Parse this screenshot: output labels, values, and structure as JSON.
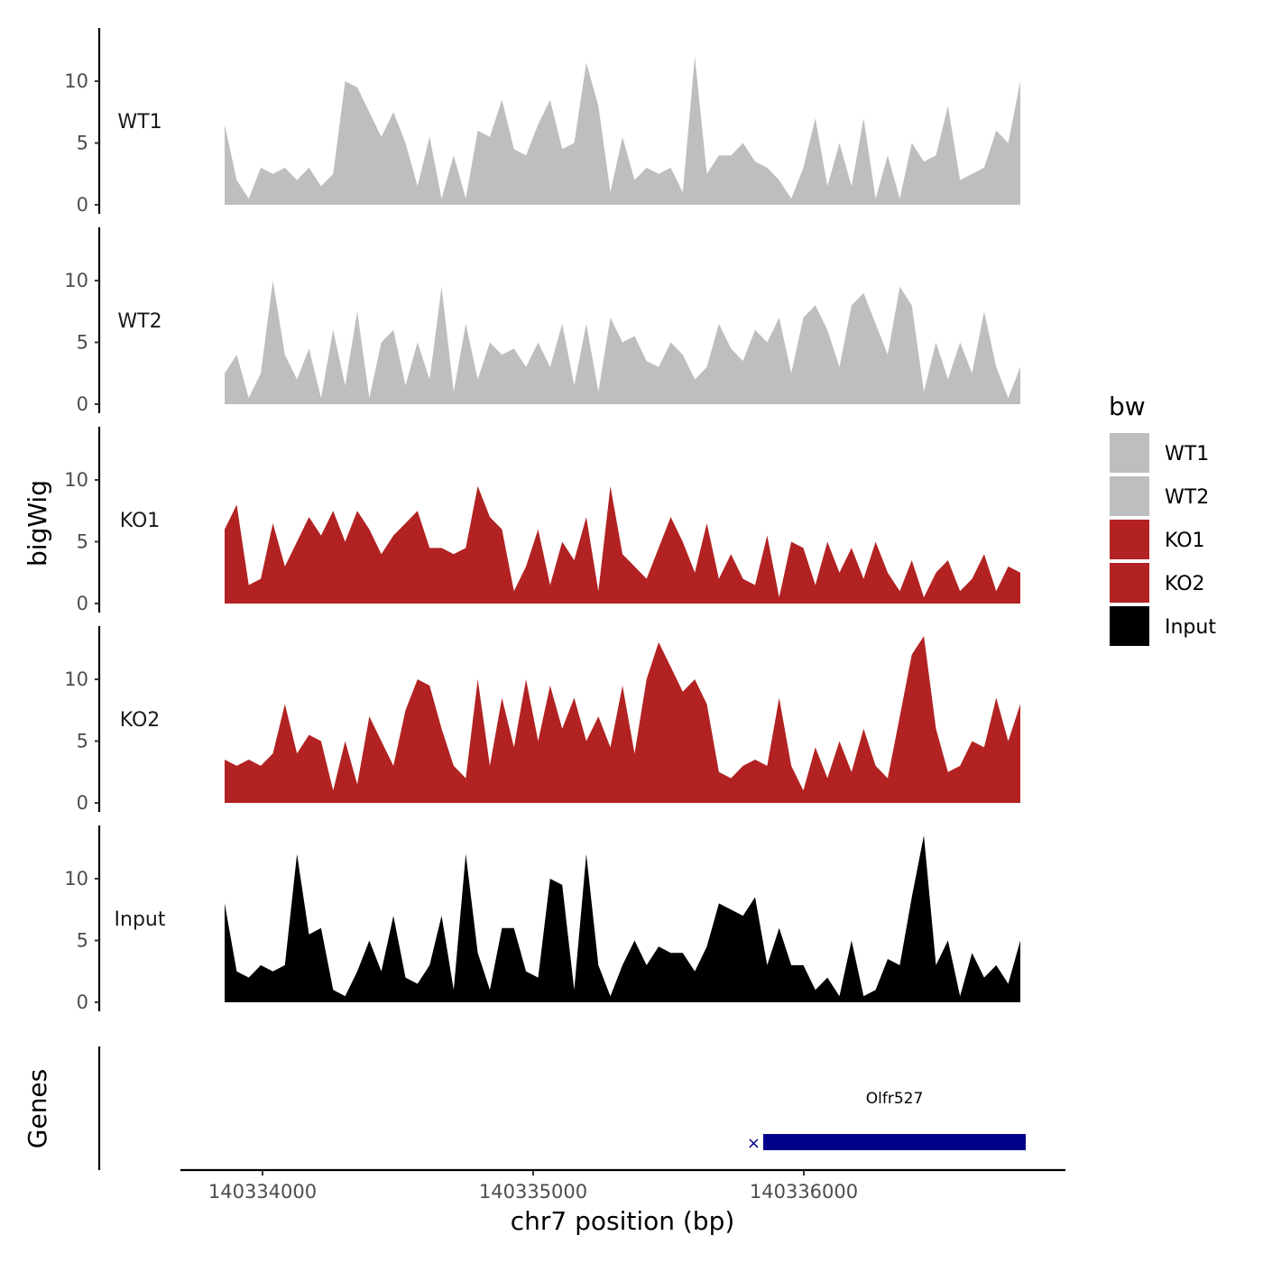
{
  "chart_data": {
    "type": "area",
    "y_axis_title": "bigWig",
    "genes_axis_title": "Genes",
    "x_axis_title": "chr7 position (bp)",
    "x_ticks": [
      140334000,
      140335000,
      140336000
    ],
    "x_range": [
      140333860,
      140336800
    ],
    "y_ticks": [
      0,
      5,
      10
    ],
    "ylim": [
      0,
      14
    ],
    "legend": {
      "title": "bw",
      "entries": [
        {
          "label": "WT1",
          "color": "#BEBEBE"
        },
        {
          "label": "WT2",
          "color": "#BEBEBE"
        },
        {
          "label": "KO1",
          "color": "#B22222"
        },
        {
          "label": "KO2",
          "color": "#B22222"
        },
        {
          "label": "Input",
          "color": "#000000"
        }
      ]
    },
    "tracks": [
      {
        "name": "WT1",
        "color": "#BEBEBE",
        "values": [
          6.5,
          2,
          0.5,
          3,
          2.5,
          3,
          2,
          3,
          1.5,
          2.5,
          10,
          9.5,
          7.5,
          5.5,
          7.5,
          5,
          1.5,
          5.5,
          0.5,
          4,
          0.5,
          6,
          5.5,
          8.5,
          4.5,
          4,
          6.5,
          8.5,
          4.5,
          5,
          11.5,
          8,
          1,
          5.5,
          2,
          3,
          2.5,
          3,
          1,
          12,
          2.5,
          4,
          4,
          5,
          3.5,
          3,
          2,
          0.5,
          3,
          7,
          1.5,
          5,
          1.5,
          7,
          0.5,
          4,
          0.5,
          5,
          3.5,
          4,
          8,
          2,
          2.5,
          3,
          6,
          5,
          10
        ]
      },
      {
        "name": "WT2",
        "color": "#BEBEBE",
        "values": [
          2.5,
          4,
          0.5,
          2.5,
          10,
          4,
          2,
          4.5,
          0.5,
          6,
          1.5,
          7.5,
          0.5,
          5,
          6,
          1.5,
          5,
          2,
          9.5,
          1,
          6.5,
          2,
          5,
          4,
          4.5,
          3,
          5,
          3,
          6.5,
          1.5,
          6.5,
          1,
          7,
          5,
          5.5,
          3.5,
          3,
          5,
          4,
          2,
          3,
          6.5,
          4.5,
          3.5,
          6,
          5,
          7,
          2.5,
          7,
          8,
          6,
          3,
          8,
          9,
          6.5,
          4,
          9.5,
          8,
          1,
          5,
          2,
          5,
          2.5,
          7.5,
          3,
          0.5,
          3
        ]
      },
      {
        "name": "KO1",
        "color": "#B22222",
        "values": [
          6,
          8,
          1.5,
          2,
          6.5,
          3,
          5,
          7,
          5.5,
          7.5,
          5,
          7.5,
          6,
          4,
          5.5,
          6.5,
          7.5,
          4.5,
          4.5,
          4,
          4.5,
          9.5,
          7,
          6,
          1,
          3,
          6,
          1.5,
          5,
          3.5,
          7,
          1,
          9.5,
          4,
          3,
          2,
          4.5,
          7,
          5,
          2.5,
          6.5,
          2,
          4,
          2,
          1.5,
          5.5,
          0.5,
          5,
          4.5,
          1.5,
          5,
          2.5,
          4.5,
          2,
          5,
          2.5,
          1,
          3.5,
          0.5,
          2.5,
          3.5,
          1,
          2,
          4,
          1,
          3,
          2.5
        ]
      },
      {
        "name": "KO2",
        "color": "#B22222",
        "values": [
          3.5,
          3,
          3.5,
          3,
          4,
          8,
          4,
          5.5,
          5,
          1,
          5,
          1.5,
          7,
          5,
          3,
          7.5,
          10,
          9.5,
          6,
          3,
          2,
          10,
          3,
          8.5,
          4.5,
          10,
          5,
          9.5,
          6,
          8.5,
          5,
          7,
          4.5,
          9.5,
          4,
          10,
          13,
          11,
          9,
          10,
          8,
          2.5,
          2,
          3,
          3.5,
          3,
          8.5,
          3,
          1,
          4.5,
          2,
          5,
          2.5,
          6,
          3,
          2,
          7,
          12,
          13.5,
          6,
          2.5,
          3,
          5,
          4.5,
          8.5,
          5,
          8
        ]
      },
      {
        "name": "Input",
        "color": "#000000",
        "values": [
          8,
          2.5,
          2,
          3,
          2.5,
          3,
          12,
          5.5,
          6,
          1,
          0.5,
          2.5,
          5,
          2.5,
          7,
          2,
          1.5,
          3,
          7,
          1,
          12,
          4,
          1,
          6,
          6,
          2.5,
          2,
          10,
          9.5,
          1,
          12,
          3,
          0.5,
          3,
          5,
          3,
          4.5,
          4,
          4,
          2.5,
          4.5,
          8,
          7.5,
          7,
          8.5,
          3,
          6,
          3,
          3,
          1,
          2,
          0.5,
          5,
          0.5,
          1,
          3.5,
          3,
          8.5,
          13.5,
          3,
          5,
          0.5,
          4,
          2,
          3,
          1.5,
          5
        ]
      }
    ],
    "gene": {
      "name": "Olfr527",
      "start": 140335850,
      "end": 140336820
    }
  }
}
